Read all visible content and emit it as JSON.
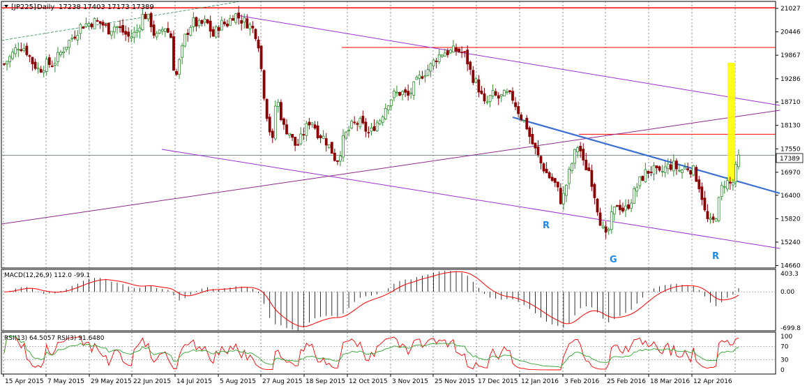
{
  "chart_data": [
    {
      "type": "candlestick",
      "symbol": "[JP225]",
      "timeframe": "Daily",
      "ohlc_header": "17238 17403 17173 17389",
      "current_price": "17389",
      "y_ticks": [
        "21027",
        "20446",
        "19867",
        "19286",
        "18710",
        "18130",
        "17550",
        "16970",
        "16400",
        "15820",
        "15240",
        "14660"
      ],
      "x_ticks": [
        "15 Apr 2015",
        "7 May 2015",
        "29 May 2015",
        "22 Jun 2015",
        "14 Jul 2015",
        "5 Aug 2015",
        "27 Aug 2015",
        "18 Sep 2015",
        "12 Oct 2015",
        "3 Nov 2015",
        "25 Nov 2015",
        "17 Dec 2015",
        "12 Jan 2016",
        "3 Feb 2016",
        "25 Feb 2016",
        "18 Mar 2016",
        "12 Apr 2016"
      ],
      "ylim": [
        14600,
        21200
      ],
      "annotations": [
        {
          "text": "R",
          "color": "#1e88e5"
        },
        {
          "text": "G",
          "color": "#1e88e5"
        },
        {
          "text": "R",
          "color": "#1e88e5"
        }
      ],
      "horizontal_levels": [
        {
          "price": 21040,
          "color": "#ff0000"
        },
        {
          "price": 20060,
          "color": "#ff0000"
        },
        {
          "price": 17910,
          "color": "#ff0000"
        },
        {
          "price": 17389,
          "color": "#708090"
        }
      ],
      "close_path": [
        [
          0,
          19650
        ],
        [
          10,
          19850
        ],
        [
          20,
          20100
        ],
        [
          30,
          20050
        ],
        [
          40,
          19700
        ],
        [
          50,
          19500
        ],
        [
          60,
          19650
        ],
        [
          70,
          19650
        ],
        [
          80,
          19900
        ],
        [
          90,
          20150
        ],
        [
          100,
          20350
        ],
        [
          110,
          20600
        ],
        [
          120,
          20650
        ],
        [
          130,
          20700
        ],
        [
          140,
          20650
        ],
        [
          150,
          20500
        ],
        [
          160,
          20600
        ],
        [
          170,
          20450
        ],
        [
          180,
          20300
        ],
        [
          190,
          20450
        ],
        [
          200,
          20900
        ],
        [
          210,
          20700
        ],
        [
          215,
          20400
        ],
        [
          220,
          20300
        ],
        [
          230,
          20600
        ],
        [
          240,
          20300
        ],
        [
          245,
          19200
        ],
        [
          250,
          19600
        ],
        [
          260,
          20350
        ],
        [
          270,
          20700
        ],
        [
          280,
          20600
        ],
        [
          290,
          20700
        ],
        [
          300,
          20350
        ],
        [
          310,
          20650
        ],
        [
          320,
          20650
        ],
        [
          330,
          20900
        ],
        [
          340,
          20750
        ],
        [
          350,
          20650
        ],
        [
          360,
          20450
        ],
        [
          365,
          20150
        ],
        [
          370,
          19350
        ],
        [
          375,
          18600
        ],
        [
          380,
          18100
        ],
        [
          385,
          17700
        ],
        [
          390,
          18800
        ],
        [
          395,
          18600
        ],
        [
          400,
          18100
        ],
        [
          410,
          17950
        ],
        [
          415,
          17700
        ],
        [
          420,
          17600
        ],
        [
          430,
          17950
        ],
        [
          440,
          18300
        ],
        [
          450,
          17950
        ],
        [
          460,
          17800
        ],
        [
          470,
          17500
        ],
        [
          475,
          17300
        ],
        [
          480,
          17300
        ],
        [
          485,
          17700
        ],
        [
          490,
          17900
        ],
        [
          500,
          18150
        ],
        [
          510,
          18200
        ],
        [
          520,
          18000
        ],
        [
          525,
          17900
        ],
        [
          530,
          18100
        ],
        [
          540,
          18300
        ],
        [
          550,
          18700
        ],
        [
          560,
          18900
        ],
        [
          570,
          18950
        ],
        [
          580,
          18850
        ],
        [
          590,
          19150
        ],
        [
          600,
          19400
        ],
        [
          610,
          19550
        ],
        [
          620,
          19800
        ],
        [
          630,
          19950
        ],
        [
          640,
          19950
        ],
        [
          650,
          20000
        ],
        [
          660,
          19900
        ],
        [
          665,
          19700
        ],
        [
          670,
          19400
        ],
        [
          680,
          19100
        ],
        [
          690,
          18600
        ],
        [
          700,
          18900
        ],
        [
          710,
          18800
        ],
        [
          720,
          18900
        ],
        [
          730,
          18800
        ],
        [
          740,
          18400
        ],
        [
          750,
          18100
        ],
        [
          755,
          17800
        ],
        [
          760,
          17600
        ],
        [
          770,
          17200
        ],
        [
          780,
          16900
        ],
        [
          790,
          16700
        ],
        [
          795,
          16500
        ],
        [
          800,
          16200
        ],
        [
          810,
          16900
        ],
        [
          815,
          17200
        ],
        [
          820,
          17500
        ],
        [
          825,
          17700
        ],
        [
          830,
          17200
        ],
        [
          840,
          17000
        ],
        [
          845,
          16600
        ],
        [
          850,
          16200
        ],
        [
          855,
          15800
        ],
        [
          860,
          15500
        ],
        [
          865,
          15300
        ],
        [
          870,
          15800
        ],
        [
          875,
          16000
        ],
        [
          880,
          16200
        ],
        [
          890,
          16000
        ],
        [
          900,
          16300
        ],
        [
          910,
          16700
        ],
        [
          920,
          16950
        ],
        [
          930,
          17050
        ],
        [
          940,
          16900
        ],
        [
          950,
          17100
        ],
        [
          960,
          17150
        ],
        [
          970,
          17000
        ],
        [
          980,
          17100
        ],
        [
          990,
          17000
        ],
        [
          1000,
          16500
        ],
        [
          1005,
          16000
        ],
        [
          1010,
          15750
        ],
        [
          1015,
          15700
        ],
        [
          1020,
          15800
        ],
        [
          1025,
          16200
        ],
        [
          1030,
          16600
        ],
        [
          1035,
          16750
        ],
        [
          1040,
          16700
        ],
        [
          1045,
          16650
        ],
        [
          1050,
          17050
        ],
        [
          1055,
          17389
        ]
      ],
      "bull_candle_color": "#2e8b2e",
      "bear_candle_color": "#8b0000"
    },
    {
      "type": "histogram+line",
      "indicator": "MACD",
      "label": "MACD(12,26,9) 112.0 -99.1",
      "y_ticks": [
        "403.3",
        "0.00",
        "-699.8"
      ],
      "ylim": [
        -699.8,
        403.3
      ],
      "hist_color": "#000000",
      "signal_color": "#ff0000"
    },
    {
      "type": "line",
      "indicator": "RSI",
      "label": "RSI(13) 64.5057   RSI(3) 91.6480",
      "y_ticks": [
        "100",
        "70",
        "30",
        "0"
      ],
      "ylim": [
        0,
        100
      ],
      "levels": [
        70,
        30
      ],
      "series": [
        {
          "name": "RSI(13)",
          "color": "#2ea32e"
        },
        {
          "name": "RSI(3)",
          "color": "#ff0000"
        }
      ]
    }
  ]
}
